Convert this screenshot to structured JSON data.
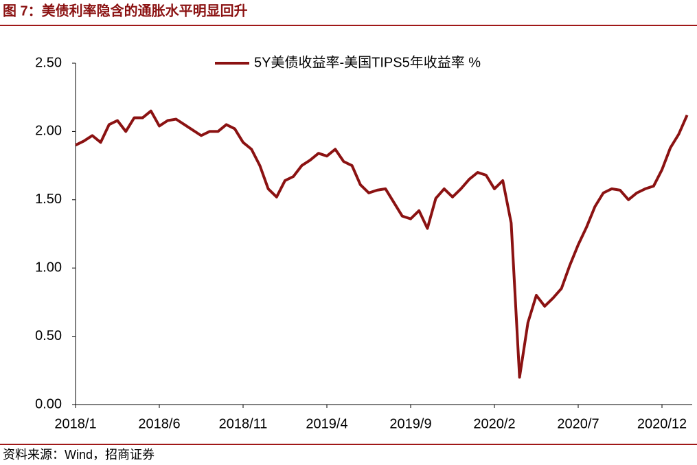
{
  "chart_data": {
    "type": "line",
    "title": "图 7：美债利率隐含的通胀水平明显回升",
    "source": "资料来源：Wind，招商证券",
    "categories": [
      "2018/1",
      null,
      null,
      null,
      null,
      null,
      null,
      null,
      null,
      null,
      "2018/6",
      null,
      null,
      null,
      null,
      null,
      null,
      null,
      null,
      null,
      "2018/11",
      null,
      null,
      null,
      null,
      null,
      null,
      null,
      null,
      null,
      "2019/4",
      null,
      null,
      null,
      null,
      null,
      null,
      null,
      null,
      null,
      "2019/9",
      null,
      null,
      null,
      null,
      null,
      null,
      null,
      null,
      null,
      "2020/2",
      null,
      null,
      null,
      null,
      null,
      null,
      null,
      null,
      null,
      "2020/7",
      null,
      null,
      null,
      null,
      null,
      null,
      null,
      null,
      null,
      "2020/12",
      null,
      null,
      null
    ],
    "series": [
      {
        "name": "5Y美债收益率-美国TIPS5年收益率 %",
        "color": "#8b1212",
        "values": [
          1.9,
          1.93,
          1.97,
          1.92,
          2.05,
          2.08,
          2.0,
          2.1,
          2.1,
          2.15,
          2.04,
          2.08,
          2.09,
          2.05,
          2.01,
          1.97,
          2.0,
          2.0,
          2.05,
          2.02,
          1.92,
          1.87,
          1.75,
          1.58,
          1.52,
          1.64,
          1.67,
          1.75,
          1.79,
          1.84,
          1.82,
          1.87,
          1.78,
          1.75,
          1.61,
          1.55,
          1.57,
          1.58,
          1.48,
          1.38,
          1.36,
          1.42,
          1.29,
          1.51,
          1.58,
          1.52,
          1.58,
          1.65,
          1.7,
          1.68,
          1.58,
          1.64,
          1.33,
          0.2,
          0.6,
          0.8,
          0.72,
          0.78,
          0.85,
          1.02,
          1.17,
          1.3,
          1.45,
          1.55,
          1.58,
          1.57,
          1.5,
          1.55,
          1.58,
          1.6,
          1.72,
          1.88,
          1.98,
          2.12
        ]
      }
    ],
    "ylim": [
      0,
      2.5
    ],
    "yticks": [
      {
        "value": 0,
        "label": "0.00"
      },
      {
        "value": 0.5,
        "label": "0.50"
      },
      {
        "value": 1,
        "label": "1.00"
      },
      {
        "value": 1.5,
        "label": "1.50"
      },
      {
        "value": 2,
        "label": "2.00"
      },
      {
        "value": 2.5,
        "label": "2.50"
      }
    ],
    "grid": false,
    "legend": "top"
  }
}
